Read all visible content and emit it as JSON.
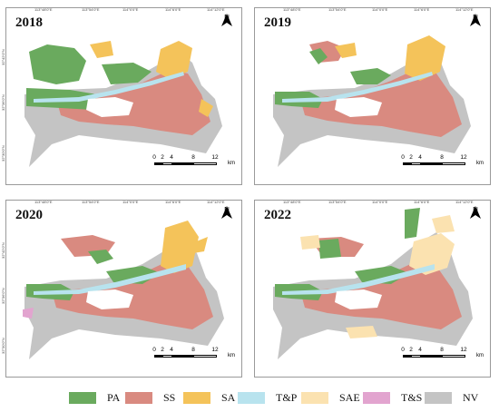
{
  "panels": [
    {
      "year": "2018"
    },
    {
      "year": "2019"
    },
    {
      "year": "2020"
    },
    {
      "year": "2022"
    }
  ],
  "north_label": "N",
  "scale": {
    "ticks": [
      "0",
      "2",
      "4",
      "8",
      "12"
    ],
    "unit": "km"
  },
  "top_ticks": [
    "113°48'0\"E",
    "113°54'0\"E",
    "114°0'0\"E",
    "114°6'0\"E",
    "114°12'0\"E"
  ],
  "side_ticks": [
    "32°42'0\"N",
    "32°36'0\"N",
    "32°30'0\"N"
  ],
  "legend": [
    {
      "code": "PA",
      "color": "#6aaa5e"
    },
    {
      "code": "SS",
      "color": "#d98a80"
    },
    {
      "code": "SA",
      "color": "#f4c35a"
    },
    {
      "code": "T&P",
      "color": "#b8e3ee"
    },
    {
      "code": "SAE",
      "color": "#fbe2b0"
    },
    {
      "code": "T&S",
      "color": "#e2a4cf"
    },
    {
      "code": "NV",
      "color": "#c4c4c4"
    }
  ]
}
